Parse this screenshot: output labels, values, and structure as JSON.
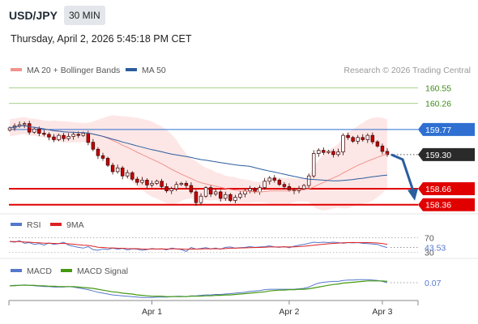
{
  "header": {
    "pair": "USD/JPY",
    "timeframe": "30 MIN",
    "datetime": "Thursday, April 2, 2026 5:45:18 PM CET"
  },
  "legend": {
    "ma20": "MA 20 + Bollinger Bands",
    "ma50": "MA 50",
    "source": "Research © 2026 Trading Central",
    "rsi": "RSI",
    "rsi_ma": "9MA",
    "macd": "MACD",
    "macd_signal": "MACD Signal"
  },
  "colors": {
    "ma20": "#f0938e",
    "ma50": "#2b5d9e",
    "band_fill": "#fde3e2",
    "candle_up": "#ffffff",
    "candle_down": "#c80000",
    "resistance_light": "#a8d08d",
    "pivot": "#2e6fd1",
    "support": "#e00000",
    "current": "#2a2a2a",
    "arrow": "#2b5d9e",
    "rsi": "#5577cc",
    "rsi_ma": "#dd2222",
    "macd": "#5577cc",
    "macd_signal": "#449911"
  },
  "chart_data": [
    {
      "type": "candlestick",
      "panel": "price",
      "ylim": [
        158.28,
        160.68
      ],
      "levels": [
        {
          "value": 160.55,
          "label": "160.55",
          "kind": "resistance_light"
        },
        {
          "value": 160.26,
          "label": "160.26",
          "kind": "resistance_light"
        },
        {
          "value": 159.77,
          "label": "159.77",
          "kind": "pivot"
        },
        {
          "value": 159.3,
          "label": "159.30",
          "kind": "current"
        },
        {
          "value": 158.66,
          "label": "158.66",
          "kind": "support"
        },
        {
          "value": 158.36,
          "label": "158.36",
          "kind": "support"
        }
      ],
      "x_ticks": [
        {
          "index": 29,
          "label": "Apr 1"
        },
        {
          "index": 57,
          "label": "Apr 2"
        },
        {
          "index": 76,
          "label": "Apr 3"
        }
      ],
      "closes": [
        159.8,
        159.84,
        159.86,
        159.88,
        159.72,
        159.78,
        159.7,
        159.68,
        159.63,
        159.58,
        159.66,
        159.6,
        159.64,
        159.68,
        159.66,
        159.7,
        159.53,
        159.4,
        159.28,
        159.23,
        159.1,
        158.98,
        159.05,
        158.9,
        158.96,
        158.84,
        158.78,
        158.82,
        158.73,
        158.76,
        158.8,
        158.7,
        158.62,
        158.66,
        158.74,
        158.76,
        158.72,
        158.6,
        158.4,
        158.52,
        158.68,
        158.56,
        158.6,
        158.48,
        158.55,
        158.44,
        158.5,
        158.56,
        158.62,
        158.66,
        158.6,
        158.68,
        158.8,
        158.86,
        158.82,
        158.74,
        158.7,
        158.64,
        158.62,
        158.66,
        158.72,
        158.9,
        159.32,
        159.38,
        159.34,
        159.36,
        159.3,
        159.35,
        159.66,
        159.62,
        159.55,
        159.62,
        159.58,
        159.66,
        159.54,
        159.46,
        159.36,
        159.3
      ],
      "ma20_end": 159.15,
      "ma50_end": 159.02,
      "forecast": {
        "from": 159.3,
        "to": 158.36
      }
    },
    {
      "type": "line",
      "panel": "rsi",
      "series": [
        {
          "name": "RSI"
        },
        {
          "name": "9MA"
        }
      ],
      "ylim": [
        25,
        80
      ],
      "levels": [
        {
          "value": 70,
          "label": "70"
        },
        {
          "value": 30,
          "label": "30"
        }
      ],
      "last": {
        "value": 43.53,
        "label": "43.53"
      },
      "rsi": [
        60,
        58,
        62,
        55,
        57,
        52,
        54,
        50,
        56,
        52,
        54,
        58,
        50,
        47,
        44,
        42,
        46,
        38,
        36,
        40,
        38,
        42,
        39,
        41,
        37,
        40,
        39,
        36,
        38,
        41,
        39,
        40,
        37,
        42,
        40,
        38,
        33,
        44,
        39,
        41,
        43,
        40,
        42,
        39,
        44,
        45,
        42,
        43,
        44,
        46,
        44,
        45,
        46,
        48,
        45,
        44,
        46,
        43,
        47,
        50,
        52,
        55,
        58,
        57,
        58,
        57,
        58,
        57,
        55,
        57,
        56,
        57,
        55,
        54,
        53,
        52,
        47,
        43.53
      ],
      "rsi_ma": [
        60,
        59.5,
        59.8,
        58.6,
        58.1,
        56.9,
        56.4,
        55.3,
        55.3,
        54.6,
        54.3,
        54.6,
        53.7,
        52.6,
        51.1,
        49.6,
        49.1,
        46.9,
        44.4,
        43.6,
        42.5,
        42.3,
        41.8,
        41.6,
        40.6,
        40.4,
        40.3,
        39.6,
        39.0,
        39.5,
        39.6,
        39.8,
        39.4,
        39.8,
        39.8,
        39.6,
        38.7,
        39.5,
        39.4,
        39.6,
        40.1,
        40.0,
        40.4,
        40.0,
        40.7,
        41.7,
        41.8,
        42.4,
        42.7,
        43.3,
        43.5,
        43.8,
        44.2,
        45.0,
        45.1,
        45.0,
        45.4,
        45.0,
        45.4,
        46.1,
        47.1,
        48.3,
        49.9,
        51.2,
        52.4,
        53.5,
        54.6,
        55.6,
        56.2,
        56.9,
        57.2,
        57.0,
        57.0,
        56.8,
        56.4,
        55.8,
        54.4,
        52.2
      ]
    },
    {
      "type": "line",
      "panel": "macd",
      "series": [
        {
          "name": "MACD"
        },
        {
          "name": "MACD Signal"
        }
      ],
      "ylim": [
        -0.32,
        0.2
      ],
      "last": {
        "value": 0.07,
        "label": "0.07"
      },
      "macd": [
        0.0,
        0.01,
        0.01,
        0.02,
        0.01,
        0.0,
        -0.01,
        -0.02,
        -0.02,
        -0.03,
        -0.03,
        -0.03,
        -0.02,
        -0.03,
        -0.05,
        -0.07,
        -0.09,
        -0.12,
        -0.15,
        -0.17,
        -0.19,
        -0.21,
        -0.22,
        -0.23,
        -0.24,
        -0.25,
        -0.26,
        -0.27,
        -0.27,
        -0.27,
        -0.26,
        -0.26,
        -0.26,
        -0.25,
        -0.24,
        -0.24,
        -0.25,
        -0.23,
        -0.23,
        -0.22,
        -0.21,
        -0.21,
        -0.2,
        -0.2,
        -0.19,
        -0.18,
        -0.17,
        -0.16,
        -0.15,
        -0.13,
        -0.12,
        -0.11,
        -0.09,
        -0.08,
        -0.08,
        -0.08,
        -0.08,
        -0.08,
        -0.08,
        -0.07,
        -0.06,
        -0.03,
        0.02,
        0.06,
        0.08,
        0.09,
        0.1,
        0.1,
        0.12,
        0.13,
        0.13,
        0.14,
        0.14,
        0.14,
        0.13,
        0.12,
        0.1,
        0.07
      ],
      "macd_signal": [
        0.0,
        0.0,
        0.01,
        0.01,
        0.01,
        0.01,
        0.0,
        -0.0,
        -0.01,
        -0.01,
        -0.02,
        -0.02,
        -0.02,
        -0.02,
        -0.03,
        -0.04,
        -0.05,
        -0.06,
        -0.08,
        -0.1,
        -0.12,
        -0.14,
        -0.15,
        -0.17,
        -0.18,
        -0.19,
        -0.21,
        -0.22,
        -0.23,
        -0.24,
        -0.24,
        -0.24,
        -0.25,
        -0.25,
        -0.25,
        -0.25,
        -0.25,
        -0.24,
        -0.24,
        -0.24,
        -0.23,
        -0.23,
        -0.22,
        -0.22,
        -0.21,
        -0.21,
        -0.2,
        -0.19,
        -0.18,
        -0.17,
        -0.16,
        -0.15,
        -0.14,
        -0.12,
        -0.11,
        -0.1,
        -0.1,
        -0.09,
        -0.09,
        -0.08,
        -0.08,
        -0.07,
        -0.05,
        -0.03,
        -0.01,
        0.01,
        0.03,
        0.04,
        0.06,
        0.07,
        0.08,
        0.09,
        0.1,
        0.11,
        0.11,
        0.11,
        0.11,
        0.1
      ]
    }
  ]
}
